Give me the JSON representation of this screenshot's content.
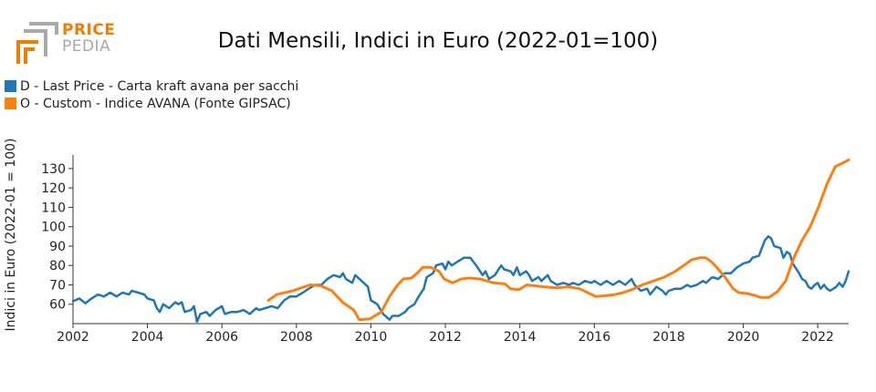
{
  "logo": {
    "top_text": "PRICE",
    "bottom_text": "PEDIA",
    "colors": {
      "orange": "#ef7d00",
      "gray": "#a9a9a9"
    }
  },
  "chart_data": {
    "type": "line",
    "title": "Dati Mensili, Indici in Euro (2022-01=100)",
    "xlabel": "",
    "ylabel": "Indici in Euro (2022-01 = 100)",
    "xlim": [
      2002,
      2022.83
    ],
    "ylim": [
      50,
      137
    ],
    "x_ticks": [
      2002,
      2004,
      2006,
      2008,
      2010,
      2012,
      2014,
      2016,
      2018,
      2020,
      2022
    ],
    "y_ticks": [
      60,
      70,
      80,
      90,
      100,
      110,
      120,
      130
    ],
    "grid": false,
    "legend_position": "top-left",
    "series": [
      {
        "name": "D - Last Price - Carta kraft avana per sacchi",
        "color": "#1f77b4",
        "points": [
          [
            2002.0,
            61.5
          ],
          [
            2002.17,
            63
          ],
          [
            2002.33,
            60.5
          ],
          [
            2002.5,
            63
          ],
          [
            2002.67,
            65
          ],
          [
            2002.83,
            64
          ],
          [
            2003.0,
            66
          ],
          [
            2003.17,
            64
          ],
          [
            2003.33,
            66
          ],
          [
            2003.5,
            65
          ],
          [
            2003.58,
            67
          ],
          [
            2003.75,
            66
          ],
          [
            2003.92,
            65
          ],
          [
            2004.0,
            63
          ],
          [
            2004.17,
            62
          ],
          [
            2004.25,
            58
          ],
          [
            2004.33,
            56
          ],
          [
            2004.42,
            60
          ],
          [
            2004.58,
            58
          ],
          [
            2004.75,
            61
          ],
          [
            2004.83,
            60
          ],
          [
            2004.92,
            61
          ],
          [
            2005.0,
            56
          ],
          [
            2005.17,
            57
          ],
          [
            2005.25,
            59
          ],
          [
            2005.33,
            51
          ],
          [
            2005.42,
            55
          ],
          [
            2005.58,
            56
          ],
          [
            2005.67,
            54
          ],
          [
            2005.83,
            57
          ],
          [
            2006.0,
            59
          ],
          [
            2006.08,
            55
          ],
          [
            2006.25,
            56
          ],
          [
            2006.42,
            56
          ],
          [
            2006.58,
            57
          ],
          [
            2006.75,
            55
          ],
          [
            2006.92,
            58
          ],
          [
            2007.0,
            57
          ],
          [
            2007.17,
            58
          ],
          [
            2007.33,
            59
          ],
          [
            2007.5,
            58
          ],
          [
            2007.67,
            62
          ],
          [
            2007.83,
            64
          ],
          [
            2008.0,
            64
          ],
          [
            2008.17,
            66
          ],
          [
            2008.33,
            68
          ],
          [
            2008.5,
            70
          ],
          [
            2008.67,
            70
          ],
          [
            2008.83,
            73
          ],
          [
            2009.0,
            75
          ],
          [
            2009.17,
            74
          ],
          [
            2009.25,
            76
          ],
          [
            2009.33,
            73
          ],
          [
            2009.5,
            71
          ],
          [
            2009.58,
            75
          ],
          [
            2009.75,
            72
          ],
          [
            2009.92,
            69
          ],
          [
            2010.0,
            62
          ],
          [
            2010.17,
            60
          ],
          [
            2010.33,
            55
          ],
          [
            2010.5,
            52
          ],
          [
            2010.58,
            54
          ],
          [
            2010.75,
            54
          ],
          [
            2010.92,
            56
          ],
          [
            2011.0,
            58
          ],
          [
            2011.17,
            60
          ],
          [
            2011.25,
            63
          ],
          [
            2011.42,
            68
          ],
          [
            2011.5,
            74
          ],
          [
            2011.67,
            76
          ],
          [
            2011.75,
            80
          ],
          [
            2011.92,
            81
          ],
          [
            2012.0,
            78
          ],
          [
            2012.08,
            82
          ],
          [
            2012.17,
            80
          ],
          [
            2012.33,
            82
          ],
          [
            2012.5,
            84
          ],
          [
            2012.67,
            84
          ],
          [
            2012.83,
            80
          ],
          [
            2013.0,
            75
          ],
          [
            2013.08,
            77
          ],
          [
            2013.17,
            73
          ],
          [
            2013.33,
            75
          ],
          [
            2013.5,
            80
          ],
          [
            2013.58,
            78
          ],
          [
            2013.75,
            77
          ],
          [
            2013.83,
            75
          ],
          [
            2013.92,
            79
          ],
          [
            2014.0,
            75
          ],
          [
            2014.17,
            77
          ],
          [
            2014.25,
            75
          ],
          [
            2014.33,
            72
          ],
          [
            2014.5,
            74
          ],
          [
            2014.58,
            72
          ],
          [
            2014.75,
            75
          ],
          [
            2014.83,
            72
          ],
          [
            2015.0,
            70
          ],
          [
            2015.17,
            71
          ],
          [
            2015.33,
            70
          ],
          [
            2015.42,
            71
          ],
          [
            2015.58,
            70
          ],
          [
            2015.75,
            72
          ],
          [
            2015.92,
            71
          ],
          [
            2016.0,
            72
          ],
          [
            2016.17,
            70
          ],
          [
            2016.33,
            72
          ],
          [
            2016.5,
            70
          ],
          [
            2016.67,
            72
          ],
          [
            2016.83,
            70
          ],
          [
            2017.0,
            73
          ],
          [
            2017.08,
            70
          ],
          [
            2017.25,
            67
          ],
          [
            2017.42,
            68
          ],
          [
            2017.5,
            65
          ],
          [
            2017.67,
            69
          ],
          [
            2017.83,
            67
          ],
          [
            2017.92,
            65
          ],
          [
            2018.0,
            67
          ],
          [
            2018.17,
            68
          ],
          [
            2018.33,
            68
          ],
          [
            2018.5,
            70
          ],
          [
            2018.58,
            69
          ],
          [
            2018.75,
            70
          ],
          [
            2018.92,
            72
          ],
          [
            2019.0,
            71
          ],
          [
            2019.17,
            74
          ],
          [
            2019.33,
            73
          ],
          [
            2019.5,
            76
          ],
          [
            2019.67,
            76
          ],
          [
            2019.83,
            79
          ],
          [
            2019.92,
            80
          ],
          [
            2020.0,
            81
          ],
          [
            2020.17,
            82
          ],
          [
            2020.25,
            84
          ],
          [
            2020.42,
            85
          ],
          [
            2020.58,
            93
          ],
          [
            2020.67,
            95
          ],
          [
            2020.75,
            94
          ],
          [
            2020.83,
            90
          ],
          [
            2021.0,
            89
          ],
          [
            2021.08,
            84
          ],
          [
            2021.17,
            87
          ],
          [
            2021.25,
            86
          ],
          [
            2021.33,
            81
          ],
          [
            2021.5,
            76
          ],
          [
            2021.58,
            73
          ],
          [
            2021.67,
            72
          ],
          [
            2021.75,
            69
          ],
          [
            2021.83,
            68
          ],
          [
            2021.92,
            70
          ],
          [
            2022.0,
            71
          ],
          [
            2022.08,
            68
          ],
          [
            2022.17,
            70
          ],
          [
            2022.25,
            68
          ],
          [
            2022.33,
            67
          ],
          [
            2022.42,
            68
          ],
          [
            2022.5,
            69
          ],
          [
            2022.58,
            71
          ],
          [
            2022.67,
            69
          ],
          [
            2022.75,
            72
          ],
          [
            2022.83,
            77
          ]
        ]
      },
      {
        "name": "O - Custom - Indice AVANA (Fonte GIPSAC)",
        "color": "#ff7f0e",
        "points": []
      }
    ]
  }
}
